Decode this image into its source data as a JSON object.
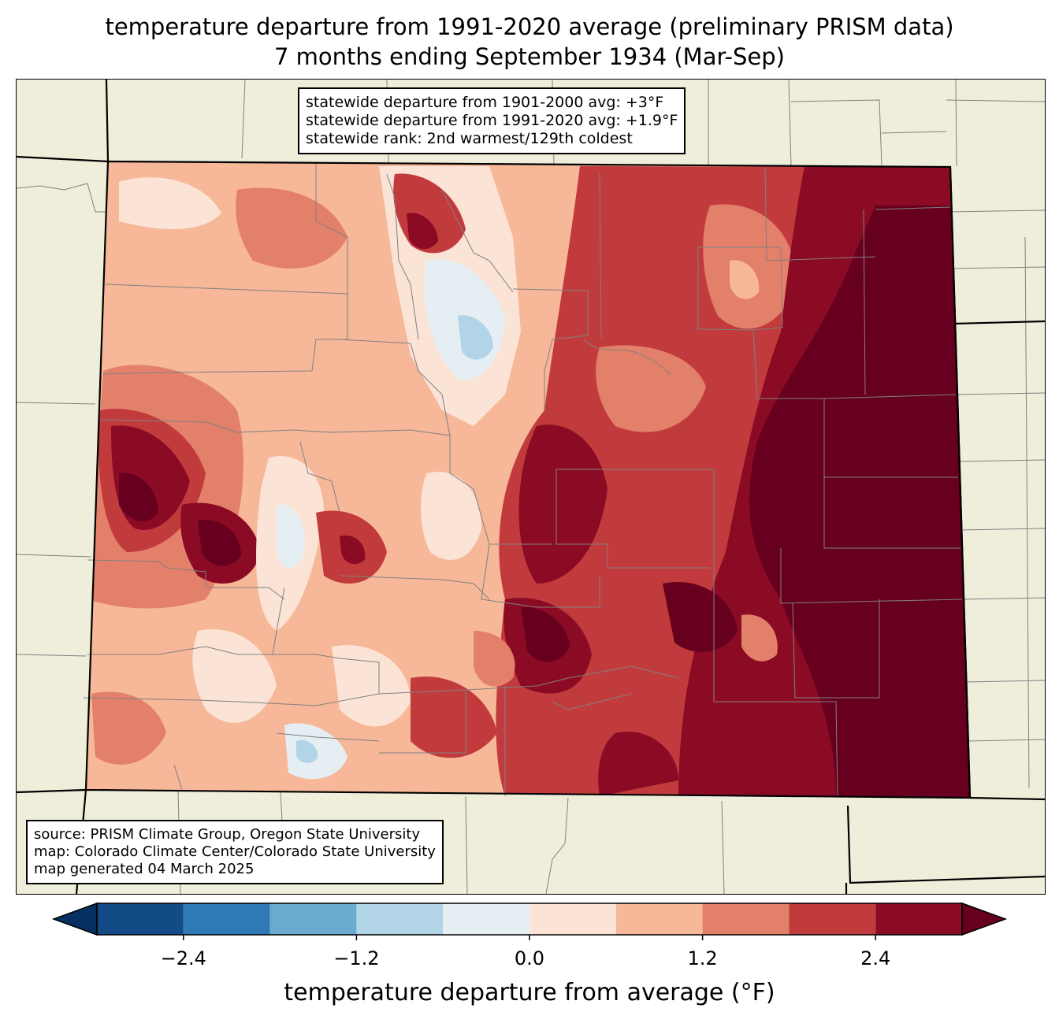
{
  "title": {
    "line1": "temperature departure from 1991-2020 average (preliminary PRISM data)",
    "line2": "7 months ending September 1934 (Mar-Sep)"
  },
  "stats_box": {
    "line1": "statewide departure from 1901-2000 avg: +3°F",
    "line2": "statewide departure from 1991-2020 avg: +1.9°F",
    "line3": "statewide rank: 2nd warmest/129th coldest"
  },
  "source_box": {
    "line1": "source: PRISM Climate Group, Oregon State University",
    "line2": "map: Colorado Climate Center/Colorado State University",
    "line3": "map generated 04 March 2025"
  },
  "colorbar": {
    "label": "temperature departure from average (°F)",
    "ticks": [
      "−2.4",
      "−1.2",
      "0.0",
      "1.2",
      "2.4"
    ],
    "tick_values": [
      -2.4,
      -1.2,
      0.0,
      1.2,
      2.4
    ],
    "range": [
      -3.0,
      3.0
    ],
    "levels": [
      {
        "lo": -3.0,
        "hi": -2.4,
        "color": "#134b87"
      },
      {
        "lo": -2.4,
        "hi": -1.8,
        "color": "#2f79b5"
      },
      {
        "lo": -1.8,
        "hi": -1.2,
        "color": "#6aacd0"
      },
      {
        "lo": -1.2,
        "hi": -0.6,
        "color": "#b1d5e7"
      },
      {
        "lo": -0.6,
        "hi": 0.0,
        "color": "#e5eef3"
      },
      {
        "lo": 0.0,
        "hi": 0.6,
        "color": "#fbe4d6"
      },
      {
        "lo": 0.6,
        "hi": 1.2,
        "color": "#f7b799"
      },
      {
        "lo": 1.2,
        "hi": 1.8,
        "color": "#e3806a"
      },
      {
        "lo": 1.8,
        "hi": 2.4,
        "color": "#c23b3c"
      },
      {
        "lo": 2.4,
        "hi": 3.0,
        "color": "#8b0b24"
      }
    ],
    "under_color": "#053061",
    "over_color": "#67001f"
  },
  "colors": {
    "land": "#efeedb",
    "state_border": "#000000",
    "county_border": "#808080"
  }
}
